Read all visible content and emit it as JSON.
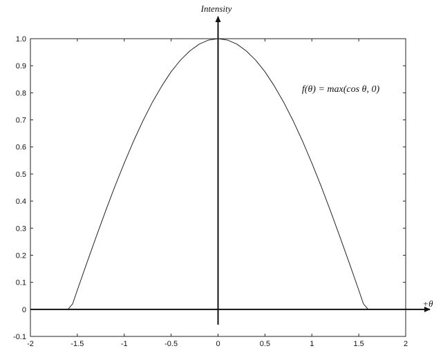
{
  "chart_data": {
    "type": "line",
    "title": "",
    "xlabel": "+θ",
    "ylabel": "Intensity",
    "annotation": "f(θ) = max(cos θ, 0)",
    "xlim": [
      -2,
      2
    ],
    "ylim": [
      -0.1,
      1.0
    ],
    "x_ticks": [
      -2,
      -1.5,
      -1,
      -0.5,
      0,
      0.5,
      1,
      1.5,
      2
    ],
    "x_tick_labels": [
      "-2",
      "-1.5",
      "-1",
      "-0.5",
      "0",
      "0.5",
      "1",
      "1.5",
      "2"
    ],
    "y_ticks": [
      -0.1,
      0,
      0.1,
      0.2,
      0.3,
      0.4,
      0.5,
      0.6,
      0.7,
      0.8,
      0.9,
      1.0
    ],
    "y_tick_labels": [
      "-0.1",
      "0",
      "0.1",
      "0.2",
      "0.3",
      "0.4",
      "0.5",
      "0.6",
      "0.7",
      "0.8",
      "0.9",
      "1.0"
    ],
    "grid": false,
    "series": [
      {
        "x": [
          -2.0,
          -1.6,
          -1.55,
          -1.5,
          -1.4,
          -1.3,
          -1.2,
          -1.1,
          -1.0,
          -0.9,
          -0.8,
          -0.7,
          -0.6,
          -0.5,
          -0.4,
          -0.3,
          -0.2,
          -0.1,
          0.0,
          0.1,
          0.2,
          0.3,
          0.4,
          0.5,
          0.6,
          0.7,
          0.8,
          0.9,
          1.0,
          1.1,
          1.2,
          1.3,
          1.4,
          1.5,
          1.55,
          1.6,
          2.0
        ],
        "y": [
          0.0,
          0.0,
          0.02,
          0.071,
          0.17,
          0.267,
          0.362,
          0.454,
          0.54,
          0.622,
          0.697,
          0.765,
          0.825,
          0.878,
          0.921,
          0.955,
          0.98,
          0.995,
          1.0,
          0.995,
          0.98,
          0.955,
          0.921,
          0.878,
          0.825,
          0.765,
          0.697,
          0.622,
          0.54,
          0.454,
          0.362,
          0.267,
          0.17,
          0.071,
          0.02,
          0.0,
          0.0
        ]
      }
    ]
  }
}
